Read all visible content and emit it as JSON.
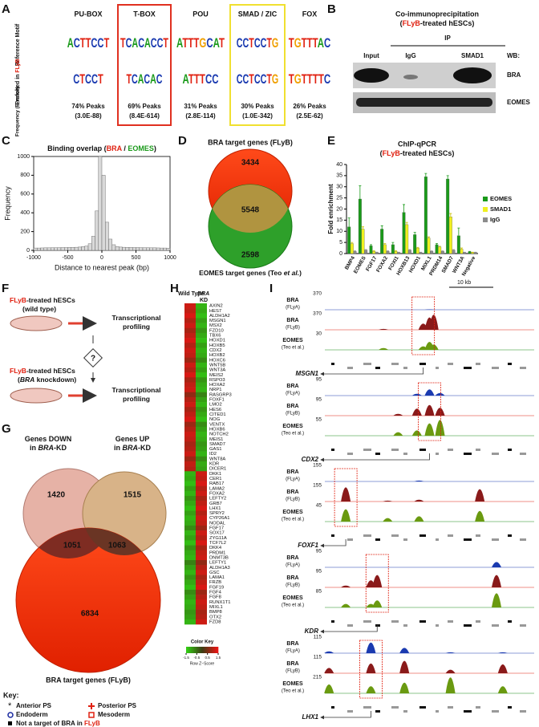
{
  "panel_labels": [
    "A",
    "B",
    "C",
    "D",
    "E",
    "F",
    "G",
    "H",
    "I"
  ],
  "motifs": {
    "row_labels": {
      "reference": "Reference Motif",
      "enriched": [
        "Enriched in ",
        "FLyB"
      ],
      "frequency": "Frequency (E-value)"
    },
    "columns": [
      {
        "name": "PU-BOX",
        "reference": "ACTTCCT",
        "enriched": "CTCCT",
        "frequency": "74% Peaks",
        "evalue": "(3.0E-88)"
      },
      {
        "name": "T-BOX",
        "reference": "TCACACCT",
        "enriched": "TCACAC",
        "frequency": "69% Peaks",
        "evalue": "(8.4E-614)"
      },
      {
        "name": "POU",
        "reference": "ATTTGCAT",
        "enriched": "ATTTCC",
        "frequency": "31% Peaks",
        "evalue": "(2.8E-114)"
      },
      {
        "name": "SMAD / ZIC",
        "reference": "CCTCCTG",
        "enriched": "CCTCCTG",
        "frequency": "30% Peaks",
        "evalue": "(1.0E-342)"
      },
      {
        "name": "FOX",
        "reference": "TGTTTAC",
        "enriched": "TGTTTTC",
        "frequency": "26% Peaks",
        "evalue": "(2.5E-62)"
      }
    ]
  },
  "coip": {
    "title": "Co-immunoprecipitation",
    "subtitle": [
      "(",
      "FLyB",
      "-treated hESCs)"
    ],
    "ip": "IP",
    "lanes": [
      "Input",
      "IgG",
      "SMAD1"
    ],
    "wb": "WB:",
    "blots": [
      "BRA",
      "EOMES"
    ]
  },
  "chart_data": [
    {
      "type": "histogram",
      "title": [
        "Binding overlap (",
        "BRA",
        " / ",
        "EOMES",
        ")"
      ],
      "xlabel": "Distance to nearest peak (bp)",
      "ylabel": "Frequency",
      "bins": [
        -1000,
        -950,
        -900,
        -850,
        -800,
        -750,
        -700,
        -650,
        -600,
        -550,
        -500,
        -450,
        -400,
        -350,
        -300,
        -250,
        -200,
        -150,
        -100,
        -50,
        0,
        50,
        100,
        150,
        200,
        250,
        300,
        350,
        400,
        450,
        500,
        550,
        600,
        650,
        700,
        750,
        800,
        850,
        900,
        950,
        1000
      ],
      "values": [
        25,
        25,
        26,
        27,
        27,
        28,
        28,
        29,
        30,
        30,
        31,
        32,
        33,
        35,
        40,
        45,
        70,
        150,
        420,
        1000,
        800,
        300,
        120,
        60,
        40,
        35,
        33,
        32,
        31,
        30,
        30,
        29,
        28,
        28,
        27,
        27,
        26,
        25,
        25,
        24
      ],
      "color": "#d9d9d9",
      "xlim": [
        -1000,
        1000
      ],
      "xticks": [
        -1000,
        -500,
        0,
        500,
        1000
      ],
      "ylim": [
        0,
        1000
      ],
      "yticks": [
        0,
        200,
        400,
        600,
        800,
        1000
      ]
    },
    {
      "type": "bar",
      "title": "ChIP-qPCR",
      "subtitle": [
        "(",
        "FLyB",
        "-treated hESCs)"
      ],
      "ylabel": "Fold enrichment",
      "categories": [
        "BMP4",
        "EOMES",
        "FGF17",
        "FOXA2",
        "FOXI1",
        "HOXB13",
        "HOXD1",
        "MIXL1",
        "PRDM14",
        "SMAD7",
        "WNT3A",
        "Negative"
      ],
      "series": [
        {
          "name": "EOMES",
          "color": "#1a9a1a",
          "values": [
            12,
            24.5,
            3.5,
            11,
            4,
            18.5,
            8.5,
            34.5,
            4,
            33.5,
            8,
            0.8
          ],
          "errors": [
            4,
            6,
            0.5,
            1.5,
            1,
            3.5,
            1,
            1.5,
            0.5,
            1.5,
            3.5,
            0.2
          ]
        },
        {
          "name": "SMAD1",
          "color": "#f0f020",
          "values": [
            4.5,
            11,
            1,
            4,
            1,
            13,
            2.5,
            7,
            3,
            16.5,
            2,
            0.5
          ],
          "errors": [
            0.5,
            1,
            0.3,
            0.5,
            0.3,
            1,
            0.3,
            0.5,
            0.3,
            1.5,
            0.5,
            0.1
          ]
        },
        {
          "name": "IgG",
          "color": "#8c8c8c",
          "values": [
            1,
            1.5,
            0.5,
            1,
            0.5,
            1.5,
            0.5,
            1,
            1,
            1.5,
            0.5,
            0.5
          ],
          "errors": [
            0.2,
            0.3,
            0.1,
            0.2,
            0.1,
            0.3,
            0.1,
            0.2,
            0.2,
            0.3,
            0.1,
            0.1
          ]
        }
      ],
      "ylim": [
        0,
        40
      ],
      "yticks": [
        0,
        5,
        10,
        15,
        20,
        25,
        30,
        35,
        40
      ],
      "legend": "right"
    }
  ],
  "venn_d": {
    "top_label": "BRA target genes (FLyB)",
    "bottom_label": [
      "EOMES target genes (Teo ",
      "et al.",
      ")"
    ],
    "top_only": "3434",
    "overlap": "5548",
    "bottom_only": "2598"
  },
  "scheme_f": {
    "wild": [
      "FLyB",
      "-treated hESCs",
      "(wild type)"
    ],
    "kd": [
      "FLyB",
      "-treated hESCs",
      "(",
      "BRA",
      " knockdown)"
    ],
    "output": "Transcriptional profiling",
    "question": "?"
  },
  "venn_g": {
    "down_label": [
      "Genes DOWN",
      "in ",
      "BRA",
      "-KD"
    ],
    "up_label": [
      "Genes UP",
      "in ",
      "BRA",
      "-KD"
    ],
    "down_only": "1420",
    "up_only": "1515",
    "down_overlap": "1051",
    "up_overlap": "1063",
    "target_only": "6834",
    "bottom_label": "BRA target genes (FLyB)"
  },
  "key": {
    "title": "Key:",
    "anterior": "Anterior PS",
    "posterior": "Posterior PS",
    "endoderm": "Endoderm",
    "mesoderm": "Mesoderm",
    "not_target": [
      "Not a target of BRA in ",
      "FLyB"
    ]
  },
  "heatmap": {
    "columns": [
      "Wild Type",
      [
        "BRA",
        "KD"
      ]
    ],
    "genes": [
      "AXIN2",
      "HES7",
      "ALDH1A2",
      "MSGN1",
      "MSX2",
      "FZD10",
      "TBX6",
      "HOXD1",
      "HOXB5",
      "CDX2",
      "HOXB2",
      "HOXC6",
      "WNT5B",
      "WNT3A",
      "MEIS2",
      "RSPO3",
      "HOXA2",
      "NRP1",
      "RASGRP3",
      "FOXF1",
      "LMO2",
      "HES6",
      "CITED1",
      "NOG",
      "VENTX",
      "HOXB6",
      "NOTCH2",
      "MEIS1",
      "SMAD7",
      "GAS1",
      "ID2",
      "WNT8A",
      "KDR",
      "DICER1",
      "DKK1",
      "CER1",
      "RAB17",
      "LAMA2",
      "FOXA2",
      "LEFTY2",
      "GRB7",
      "LHX1",
      "SPRY2",
      "CYP26A1",
      "NODAL",
      "FGF17",
      "SOX17",
      "ZYG11A",
      "TCF7L2",
      "DKK4",
      "PRDM1",
      "DNMT3B",
      "LEFTY1",
      "ALDH1A3",
      "GSC",
      "LAMA1",
      "FRZB",
      "FGF19",
      "FGF4",
      "FGF8",
      "RUNX1T1",
      "MIXL1",
      "BMP8",
      "OTX2",
      "FZD8"
    ],
    "zscores": [
      [
        1.2,
        -1.2
      ],
      [
        1.1,
        -1.1
      ],
      [
        1.3,
        -1.3
      ],
      [
        1.0,
        -1.0
      ],
      [
        1.2,
        -1.2
      ],
      [
        0.9,
        -0.9
      ],
      [
        1.1,
        -1.1
      ],
      [
        1.3,
        -1.3
      ],
      [
        1.0,
        -1.0
      ],
      [
        1.2,
        -1.2
      ],
      [
        1.1,
        -1.1
      ],
      [
        0.8,
        -0.8
      ],
      [
        1.2,
        -1.2
      ],
      [
        1.0,
        -1.0
      ],
      [
        1.3,
        -1.3
      ],
      [
        0.9,
        -0.9
      ],
      [
        1.1,
        -1.1
      ],
      [
        1.2,
        -1.2
      ],
      [
        0.7,
        -0.7
      ],
      [
        1.0,
        -1.0
      ],
      [
        1.2,
        -1.2
      ],
      [
        0.9,
        -0.9
      ],
      [
        1.1,
        -1.1
      ],
      [
        1.3,
        -1.3
      ],
      [
        0.8,
        -0.8
      ],
      [
        1.0,
        -1.0
      ],
      [
        1.2,
        -1.2
      ],
      [
        1.1,
        -1.1
      ],
      [
        0.9,
        -0.9
      ],
      [
        1.0,
        -1.0
      ],
      [
        1.2,
        -1.2
      ],
      [
        0.8,
        -0.8
      ],
      [
        1.1,
        -1.1
      ],
      [
        1.0,
        -1.0
      ],
      [
        -1.2,
        1.2
      ],
      [
        -1.1,
        1.1
      ],
      [
        -1.3,
        1.3
      ],
      [
        -1.0,
        1.0
      ],
      [
        -1.2,
        1.2
      ],
      [
        -0.9,
        0.9
      ],
      [
        -1.1,
        1.1
      ],
      [
        -1.3,
        1.3
      ],
      [
        -1.0,
        1.0
      ],
      [
        -1.2,
        1.2
      ],
      [
        -1.1,
        1.1
      ],
      [
        -0.8,
        0.8
      ],
      [
        -1.2,
        1.2
      ],
      [
        -1.0,
        1.0
      ],
      [
        -1.3,
        1.3
      ],
      [
        -0.9,
        0.9
      ],
      [
        -1.1,
        1.1
      ],
      [
        -1.2,
        1.2
      ],
      [
        -0.7,
        0.7
      ],
      [
        -1.0,
        1.0
      ],
      [
        -1.2,
        1.2
      ],
      [
        -0.9,
        0.9
      ],
      [
        -1.1,
        1.1
      ],
      [
        -1.3,
        1.3
      ],
      [
        -0.8,
        0.8
      ],
      [
        -1.0,
        1.0
      ],
      [
        -1.2,
        1.2
      ],
      [
        -1.1,
        1.1
      ],
      [
        -0.9,
        0.9
      ],
      [
        -1.0,
        1.0
      ],
      [
        -1.2,
        1.2
      ]
    ],
    "color_key": {
      "title": "Color Key",
      "lim": [
        -1.5,
        1.5
      ],
      "ticks": [
        -1.5,
        -0.5,
        0.5,
        1.5
      ],
      "label": "Row Z−Score"
    }
  },
  "tracks": {
    "scale": "10 kb",
    "track_labels": [
      [
        "BRA",
        "(FLyA)"
      ],
      [
        "BRA",
        "(FLyB)"
      ],
      [
        "EOMES",
        "(Teo et al.)"
      ]
    ],
    "loci": [
      {
        "gene": "MSGN1",
        "scales": [
          "370",
          "370",
          "30"
        ]
      },
      {
        "gene": "CDX2",
        "scales": [
          "95",
          "95",
          "55"
        ]
      },
      {
        "gene": "FOXF1",
        "scales": [
          "155",
          "155",
          "45"
        ]
      },
      {
        "gene": "KDR",
        "scales": [
          "95",
          "95",
          "85"
        ]
      },
      {
        "gene": "LHX1",
        "scales": [
          "115",
          "115",
          "215"
        ]
      }
    ]
  }
}
